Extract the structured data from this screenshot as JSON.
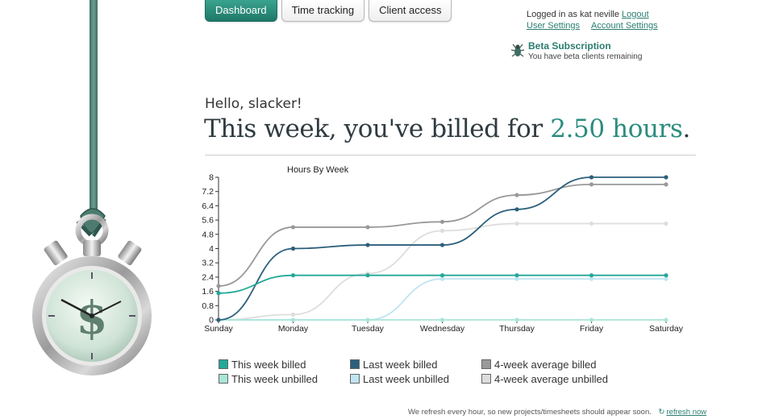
{
  "nav": {
    "tabs": [
      {
        "label": "Dashboard",
        "active": true
      },
      {
        "label": "Time tracking",
        "active": false
      },
      {
        "label": "Client access",
        "active": false
      }
    ]
  },
  "account": {
    "logged_in_text": "Logged in as kat neville",
    "logout": "Logout",
    "user_settings": "User Settings",
    "account_settings": "Account Settings"
  },
  "beta": {
    "title": "Beta Subscription",
    "subtitle": "You have beta clients remaining",
    "icon": "beta-bug-icon"
  },
  "greeting": {
    "hello": "Hello, slacker!",
    "headline_prefix": "This week, you've billed for ",
    "hours": "2.50 hours",
    "headline_suffix": "."
  },
  "chart_data": {
    "type": "line",
    "title": "Hours By Week",
    "xlabel": "",
    "ylabel": "",
    "categories": [
      "Sunday",
      "Monday",
      "Tuesday",
      "Wednesday",
      "Thursday",
      "Friday",
      "Saturday"
    ],
    "ylim": [
      0,
      8
    ],
    "yticks": [
      "0",
      "0.8",
      "1.6",
      "2.4",
      "3.2",
      "4",
      "4.8",
      "5.6",
      "6.4",
      "7.2",
      "8"
    ],
    "grid": false,
    "series": [
      {
        "name": "This week billed",
        "color": "#22a898",
        "values": [
          1.5,
          2.5,
          2.5,
          2.5,
          2.5,
          2.5,
          2.5
        ]
      },
      {
        "name": "This week unbilled",
        "color": "#a8e6d8",
        "values": [
          0,
          0,
          0,
          0,
          0,
          0,
          0
        ]
      },
      {
        "name": "Last week billed",
        "color": "#2c5f7c",
        "values": [
          0,
          4.0,
          4.2,
          4.2,
          6.2,
          8.0,
          8.0
        ]
      },
      {
        "name": "Last week unbilled",
        "color": "#bfe4f2",
        "values": [
          0,
          0,
          0,
          2.3,
          2.3,
          2.3,
          2.3
        ]
      },
      {
        "name": "4-week average billed",
        "color": "#999999",
        "values": [
          1.9,
          5.2,
          5.2,
          5.5,
          7.0,
          7.6,
          7.6
        ]
      },
      {
        "name": "4-week average unbilled",
        "color": "#dddddd",
        "values": [
          0,
          0.3,
          2.6,
          5.0,
          5.4,
          5.4,
          5.4
        ]
      }
    ]
  },
  "legend": [
    {
      "label": "This week billed",
      "color": "#22a898"
    },
    {
      "label": "Last week billed",
      "color": "#2c5f7c"
    },
    {
      "label": "4-week average billed",
      "color": "#999999"
    },
    {
      "label": "This week unbilled",
      "color": "#a8e6d8"
    },
    {
      "label": "Last week unbilled",
      "color": "#bfe4f2"
    },
    {
      "label": "4-week average unbilled",
      "color": "#dddddd"
    }
  ],
  "footer": {
    "text": "We refresh every hour, so new projects/timesheets should appear soon.",
    "refresh_link": "refresh now",
    "icon": "refresh-icon"
  },
  "decor": {
    "watch_symbol": "$"
  }
}
